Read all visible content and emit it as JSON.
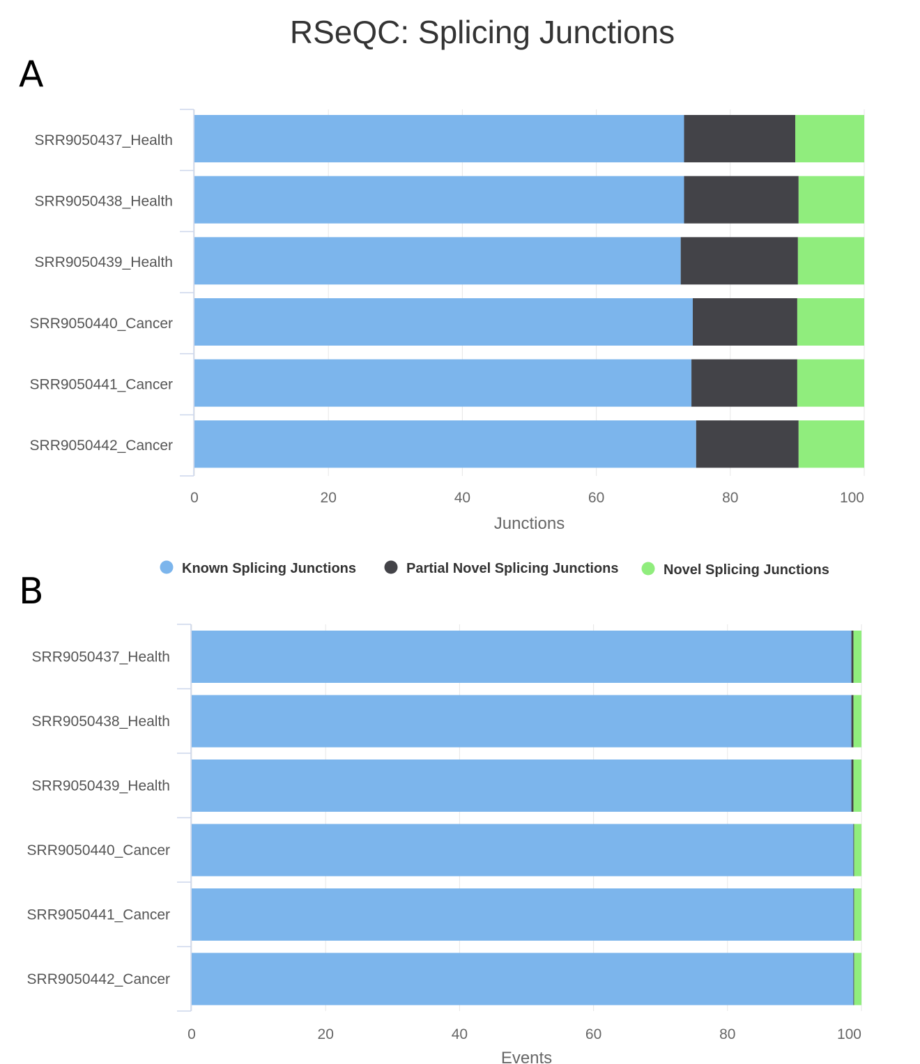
{
  "title": "RSeQC: Splicing Junctions",
  "legend": {
    "items": [
      {
        "label": "Known Splicing Junctions",
        "color": "#7cb5ec"
      },
      {
        "label": "Partial Novel Splicing Junctions",
        "color": "#434348"
      },
      {
        "label": "Novel Splicing Junctions",
        "color": "#90ed7d"
      }
    ]
  },
  "chart_data": [
    {
      "panel": "A",
      "type": "bar",
      "orientation": "horizontal",
      "stacked": "percent",
      "categories": [
        "SRR9050437_Health",
        "SRR9050438_Health",
        "SRR9050439_Health",
        "SRR9050440_Cancer",
        "SRR9050441_Cancer",
        "SRR9050442_Cancer"
      ],
      "series": [
        {
          "name": "Known Splicing Junctions",
          "color": "#7cb5ec",
          "values": [
            73.1,
            73.1,
            72.6,
            74.4,
            74.2,
            74.9
          ]
        },
        {
          "name": "Partial Novel Splicing Junctions",
          "color": "#434348",
          "values": [
            16.6,
            17.1,
            17.5,
            15.6,
            15.8,
            15.3
          ]
        },
        {
          "name": "Novel Splicing Junctions",
          "color": "#90ed7d",
          "values": [
            10.3,
            9.8,
            9.9,
            10.0,
            10.0,
            9.8
          ]
        }
      ],
      "xlabel": "Junctions",
      "xlim": [
        0,
        100
      ],
      "xticks": [
        "0",
        "20",
        "40",
        "60",
        "80",
        "100"
      ],
      "grid": true
    },
    {
      "panel": "B",
      "type": "bar",
      "orientation": "horizontal",
      "stacked": "percent",
      "categories": [
        "SRR9050437_Health",
        "SRR9050438_Health",
        "SRR9050439_Health",
        "SRR9050440_Cancer",
        "SRR9050441_Cancer",
        "SRR9050442_Cancer"
      ],
      "series": [
        {
          "name": "Known Splicing Junctions",
          "color": "#7cb5ec",
          "values": [
            98.5,
            98.5,
            98.5,
            98.8,
            98.8,
            98.8
          ]
        },
        {
          "name": "Partial Novel Splicing Junctions",
          "color": "#434348",
          "values": [
            0.3,
            0.3,
            0.3,
            0.1,
            0.1,
            0.1
          ]
        },
        {
          "name": "Novel Splicing Junctions",
          "color": "#90ed7d",
          "values": [
            1.2,
            1.2,
            1.2,
            1.1,
            1.1,
            1.1
          ]
        }
      ],
      "xlabel": "Events",
      "xlim": [
        0,
        100
      ],
      "xticks": [
        "0",
        "20",
        "40",
        "60",
        "80",
        "100"
      ],
      "grid": true
    }
  ]
}
